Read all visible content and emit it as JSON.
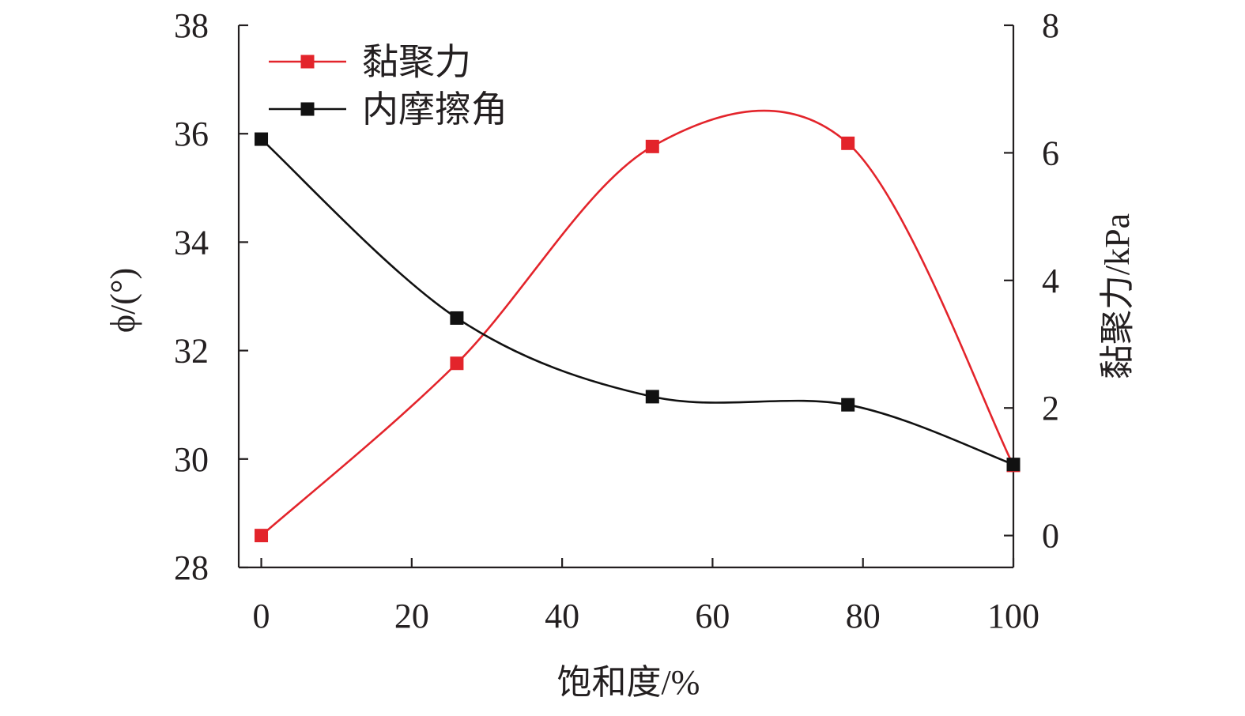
{
  "chart_data": {
    "type": "line",
    "xlabel": "饱和度/%",
    "ylabel_left": "ϕ/(°)",
    "ylabel_right": "黏聚力/kPa",
    "xlim": [
      -3,
      100
    ],
    "ylim_left": [
      28,
      38
    ],
    "ylim_right": [
      -0.5,
      8
    ],
    "x_ticks": [
      0,
      20,
      40,
      60,
      80,
      100
    ],
    "y_left_ticks": [
      28,
      30,
      32,
      34,
      36,
      38
    ],
    "y_right_ticks": [
      0,
      2,
      4,
      6,
      8
    ],
    "legend_position": "top-left",
    "series": [
      {
        "name": "黏聚力",
        "axis": "right",
        "color": "#e3242b",
        "marker": "square",
        "x": [
          0,
          26,
          52,
          78,
          100
        ],
        "y": [
          0.0,
          2.7,
          6.1,
          6.15,
          1.1
        ]
      },
      {
        "name": "内摩擦角",
        "axis": "left",
        "color": "#111111",
        "marker": "square",
        "x": [
          0,
          26,
          52,
          78,
          100
        ],
        "y": [
          35.9,
          32.6,
          31.15,
          31.0,
          29.9
        ]
      }
    ]
  }
}
